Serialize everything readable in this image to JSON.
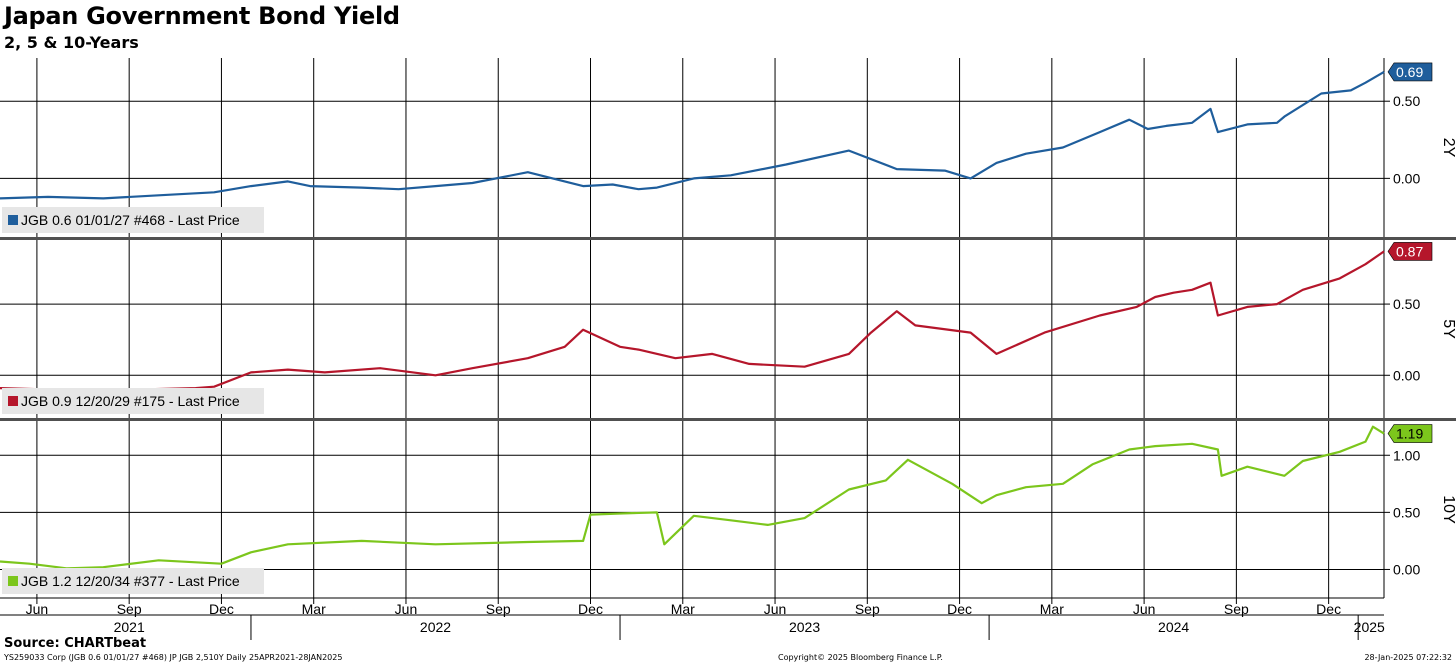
{
  "title": "Japan Government Bond Yield",
  "subtitle": "2, 5 & 10-Years",
  "source": "Source: CHARTbeat",
  "footer": {
    "left": "YS259033 Corp (JGB 0.6 01/01/27 #468) JP JGB 2,510Y  Daily 25APR2021-28JAN2025",
    "center": "Copyright© 2025 Bloomberg Finance L.P.",
    "right": "28-Jan-2025 07:22:32"
  },
  "chart_data": [
    {
      "type": "line",
      "panel_label": "2Y",
      "legend": "JGB 0.6 01/01/27 #468 - Last Price",
      "color": "#1f5e9c",
      "last_value": 0.69,
      "last_label": "0.69",
      "yticks": [
        0.0,
        0.5
      ],
      "ytick_labels": [
        "0.00",
        "0.50"
      ],
      "ylim": [
        -0.38,
        0.78
      ],
      "x_range": [
        2021.32,
        2025.07
      ],
      "x": [
        2021.32,
        2021.45,
        2021.6,
        2021.75,
        2021.9,
        2022.0,
        2022.1,
        2022.16,
        2022.3,
        2022.4,
        2022.5,
        2022.6,
        2022.75,
        2022.9,
        2022.98,
        2023.05,
        2023.1,
        2023.2,
        2023.3,
        2023.45,
        2023.62,
        2023.75,
        2023.88,
        2023.95,
        2024.02,
        2024.1,
        2024.2,
        2024.3,
        2024.38,
        2024.43,
        2024.48,
        2024.55,
        2024.6,
        2024.62,
        2024.7,
        2024.78,
        2024.8,
        2024.9,
        2024.98,
        2025.02,
        2025.07
      ],
      "values": [
        -0.13,
        -0.12,
        -0.13,
        -0.11,
        -0.09,
        -0.05,
        -0.02,
        -0.05,
        -0.06,
        -0.07,
        -0.05,
        -0.03,
        0.04,
        -0.05,
        -0.04,
        -0.07,
        -0.06,
        0.0,
        0.02,
        0.09,
        0.18,
        0.06,
        0.05,
        0.0,
        0.1,
        0.16,
        0.2,
        0.3,
        0.38,
        0.32,
        0.34,
        0.36,
        0.45,
        0.3,
        0.35,
        0.36,
        0.4,
        0.55,
        0.57,
        0.62,
        0.69
      ]
    },
    {
      "type": "line",
      "panel_label": "5Y",
      "legend": "JGB 0.9 12/20/29 #175 - Last Price",
      "color": "#b5162b",
      "last_value": 0.87,
      "last_label": "0.87",
      "yticks": [
        0.0,
        0.5
      ],
      "ytick_labels": [
        "0.00",
        "0.50"
      ],
      "ylim": [
        -0.3,
        0.95
      ],
      "x_range": [
        2021.32,
        2025.07
      ],
      "x": [
        2021.32,
        2021.45,
        2021.55,
        2021.7,
        2021.85,
        2021.9,
        2022.0,
        2022.1,
        2022.2,
        2022.35,
        2022.5,
        2022.6,
        2022.75,
        2022.85,
        2022.9,
        2023.0,
        2023.05,
        2023.15,
        2023.25,
        2023.35,
        2023.5,
        2023.62,
        2023.68,
        2023.75,
        2023.8,
        2023.95,
        2024.02,
        2024.15,
        2024.3,
        2024.4,
        2024.45,
        2024.5,
        2024.55,
        2024.6,
        2024.62,
        2024.7,
        2024.78,
        2024.85,
        2024.95,
        2025.02,
        2025.07
      ],
      "values": [
        -0.09,
        -0.1,
        -0.12,
        -0.1,
        -0.09,
        -0.08,
        0.02,
        0.04,
        0.02,
        0.05,
        0.0,
        0.05,
        0.12,
        0.2,
        0.32,
        0.2,
        0.18,
        0.12,
        0.15,
        0.08,
        0.06,
        0.15,
        0.3,
        0.45,
        0.35,
        0.3,
        0.15,
        0.3,
        0.42,
        0.48,
        0.55,
        0.58,
        0.6,
        0.65,
        0.42,
        0.48,
        0.5,
        0.6,
        0.68,
        0.78,
        0.87
      ]
    },
    {
      "type": "line",
      "panel_label": "10Y",
      "legend": "JGB 1.2 12/20/34 #377 - Last Price",
      "color": "#7cc61c",
      "last_value": 1.19,
      "last_label": "1.19",
      "yticks": [
        0.0,
        0.5,
        1.0
      ],
      "ytick_labels": [
        "0.00",
        "0.50",
        "1.00"
      ],
      "ylim": [
        -0.25,
        1.3
      ],
      "x_range": [
        2021.32,
        2025.07
      ],
      "x": [
        2021.32,
        2021.4,
        2021.5,
        2021.6,
        2021.75,
        2021.92,
        2022.0,
        2022.1,
        2022.3,
        2022.5,
        2022.75,
        2022.9,
        2022.92,
        2023.0,
        2023.1,
        2023.12,
        2023.2,
        2023.3,
        2023.4,
        2023.5,
        2023.62,
        2023.72,
        2023.78,
        2023.9,
        2023.98,
        2024.02,
        2024.1,
        2024.2,
        2024.28,
        2024.38,
        2024.45,
        2024.55,
        2024.62,
        2024.63,
        2024.7,
        2024.8,
        2024.85,
        2024.95,
        2025.02,
        2025.04,
        2025.07
      ],
      "values": [
        0.07,
        0.05,
        0.01,
        0.02,
        0.08,
        0.05,
        0.15,
        0.22,
        0.25,
        0.22,
        0.24,
        0.25,
        0.48,
        0.49,
        0.5,
        0.22,
        0.47,
        0.43,
        0.39,
        0.45,
        0.7,
        0.78,
        0.96,
        0.75,
        0.58,
        0.65,
        0.72,
        0.75,
        0.92,
        1.05,
        1.08,
        1.1,
        1.05,
        0.82,
        0.9,
        0.82,
        0.95,
        1.03,
        1.12,
        1.25,
        1.19
      ]
    }
  ],
  "x_axis": {
    "month_ticks": [
      {
        "x": 2021.42,
        "label": "Jun"
      },
      {
        "x": 2021.67,
        "label": "Sep"
      },
      {
        "x": 2021.92,
        "label": "Dec"
      },
      {
        "x": 2022.17,
        "label": "Mar"
      },
      {
        "x": 2022.42,
        "label": "Jun"
      },
      {
        "x": 2022.67,
        "label": "Sep"
      },
      {
        "x": 2022.92,
        "label": "Dec"
      },
      {
        "x": 2023.17,
        "label": "Mar"
      },
      {
        "x": 2023.42,
        "label": "Jun"
      },
      {
        "x": 2023.67,
        "label": "Sep"
      },
      {
        "x": 2023.92,
        "label": "Dec"
      },
      {
        "x": 2024.17,
        "label": "Mar"
      },
      {
        "x": 2024.42,
        "label": "Jun"
      },
      {
        "x": 2024.67,
        "label": "Sep"
      },
      {
        "x": 2024.92,
        "label": "Dec"
      }
    ],
    "year_labels": [
      {
        "x": 2021.67,
        "label": "2021"
      },
      {
        "x": 2022.5,
        "label": "2022"
      },
      {
        "x": 2023.5,
        "label": "2023"
      },
      {
        "x": 2024.5,
        "label": "2024"
      },
      {
        "x": 2025.03,
        "label": "2025"
      }
    ],
    "year_boundaries": [
      2022.0,
      2023.0,
      2024.0,
      2025.0
    ]
  }
}
